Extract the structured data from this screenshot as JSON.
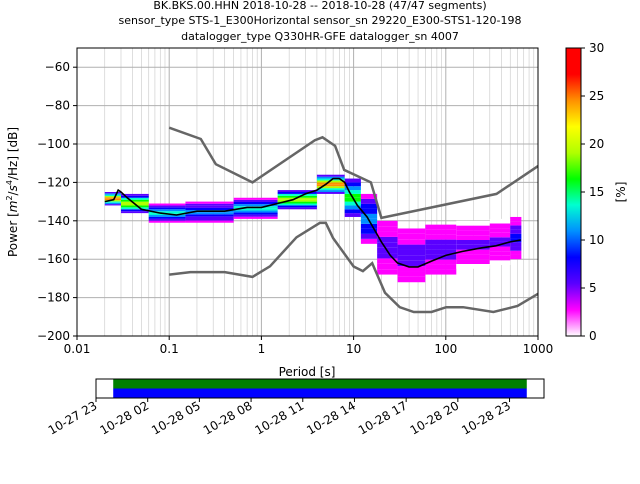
{
  "title_lines": [
    "BK.BKS.00.HHN   2018-10-28 -- 2018-10-28  (47/47 segments)",
    "sensor_type STS-1_E300Horizontal sensor_sn 29220_E300-STS1-120-198",
    "datalogger_type Q330HR-GFE datalogger_sn 4007"
  ],
  "chart_data": {
    "type": "heatmap",
    "title": "BK.BKS.00.HHN   2018-10-28 -- 2018-10-28  (47/47 segments)",
    "subtitle": "sensor_type STS-1_E300Horizontal sensor_sn 29220_E300-STS1-120-198 / datalogger_type Q330HR-GFE datalogger_sn 4007",
    "xlabel": "Period [s]",
    "ylabel_parts": [
      "Power [",
      "m",
      "2",
      "/",
      "s",
      "4",
      "/Hz] [dB]"
    ],
    "xscale": "log",
    "xlim": [
      0.01,
      1000
    ],
    "ylim": [
      -200,
      -50
    ],
    "x_ticks": [
      {
        "value": 0.01,
        "label": "0.01"
      },
      {
        "value": 0.1,
        "label": "0.1"
      },
      {
        "value": 1,
        "label": "1"
      },
      {
        "value": 10,
        "label": "10"
      },
      {
        "value": 100,
        "label": "100"
      },
      {
        "value": 1000,
        "label": "1000"
      }
    ],
    "y_ticks": [
      {
        "value": -60,
        "label": "−60"
      },
      {
        "value": -80,
        "label": "−80"
      },
      {
        "value": -100,
        "label": "−100"
      },
      {
        "value": -120,
        "label": "−120"
      },
      {
        "value": -140,
        "label": "−140"
      },
      {
        "value": -160,
        "label": "−160"
      },
      {
        "value": -180,
        "label": "−180"
      },
      {
        "value": -200,
        "label": "−200"
      }
    ],
    "grid": true,
    "colorbar": {
      "label": "[%]",
      "range": [
        0,
        30
      ],
      "ticks": [
        {
          "value": 0,
          "label": "0"
        },
        {
          "value": 5,
          "label": "5"
        },
        {
          "value": 10,
          "label": "10"
        },
        {
          "value": 15,
          "label": "15"
        },
        {
          "value": 20,
          "label": "20"
        },
        {
          "value": 25,
          "label": "25"
        },
        {
          "value": 30,
          "label": "30"
        }
      ],
      "colors": [
        "#ffffff",
        "#ff00ff",
        "#5a00ff",
        "#0000ff",
        "#0090ff",
        "#00ffd0",
        "#00ff00",
        "#b0ff00",
        "#ffff00",
        "#ff9000",
        "#ff0000",
        "#ff0000"
      ]
    },
    "noise_models": {
      "high": [
        [
          0.1,
          -91.5
        ],
        [
          0.22,
          -97.4
        ],
        [
          0.32,
          -110.5
        ],
        [
          0.8,
          -120
        ],
        [
          3.8,
          -98
        ],
        [
          4.6,
          -96.5
        ],
        [
          6.3,
          -101
        ],
        [
          7.9,
          -113.5
        ],
        [
          15.4,
          -120
        ],
        [
          20,
          -138.5
        ],
        [
          354.8,
          -126
        ],
        [
          1000,
          -111.5
        ]
      ],
      "low": [
        [
          0.1,
          -168
        ],
        [
          0.17,
          -166.7
        ],
        [
          0.4,
          -166.7
        ],
        [
          0.8,
          -169.2
        ],
        [
          1.24,
          -163.7
        ],
        [
          2.4,
          -148.6
        ],
        [
          4.3,
          -141.1
        ],
        [
          5,
          -141.1
        ],
        [
          6,
          -149
        ],
        [
          10,
          -163.8
        ],
        [
          12.6,
          -166.2
        ],
        [
          15.9,
          -162.1
        ],
        [
          21.9,
          -177.5
        ],
        [
          31.6,
          -185
        ],
        [
          45,
          -187.5
        ],
        [
          70,
          -187.5
        ],
        [
          101,
          -185
        ],
        [
          154,
          -185
        ],
        [
          328,
          -187.5
        ],
        [
          600,
          -184.4
        ],
        [
          1000,
          -178
        ]
      ]
    },
    "series": [
      {
        "name": "mode",
        "color": "#000000",
        "points": [
          [
            0.02,
            -130
          ],
          [
            0.025,
            -129
          ],
          [
            0.028,
            -124
          ],
          [
            0.03,
            -125
          ],
          [
            0.035,
            -128
          ],
          [
            0.05,
            -134
          ],
          [
            0.08,
            -136
          ],
          [
            0.12,
            -137
          ],
          [
            0.2,
            -135
          ],
          [
            0.4,
            -135
          ],
          [
            0.7,
            -133
          ],
          [
            1,
            -133
          ],
          [
            1.5,
            -131
          ],
          [
            2.2,
            -129
          ],
          [
            3,
            -126
          ],
          [
            4,
            -124
          ],
          [
            5,
            -121
          ],
          [
            6,
            -118
          ],
          [
            7,
            -118
          ],
          [
            8,
            -120
          ],
          [
            9,
            -125
          ],
          [
            11,
            -132
          ],
          [
            14,
            -138
          ],
          [
            17,
            -145
          ],
          [
            20,
            -151
          ],
          [
            25,
            -158
          ],
          [
            30,
            -162
          ],
          [
            40,
            -164
          ],
          [
            50,
            -164
          ],
          [
            70,
            -161
          ],
          [
            100,
            -158
          ],
          [
            150,
            -156
          ],
          [
            250,
            -154
          ],
          [
            350,
            -153
          ],
          [
            500,
            -151
          ],
          [
            650,
            -150
          ]
        ]
      }
    ],
    "density_bands": [
      {
        "from": 0.02,
        "to": 0.03,
        "lo": -132,
        "hi": -125,
        "center_pct": 26
      },
      {
        "from": 0.03,
        "to": 0.06,
        "lo": -136,
        "hi": -126,
        "center_pct": 22
      },
      {
        "from": 0.06,
        "to": 0.15,
        "lo": -141,
        "hi": -131,
        "center_pct": 14
      },
      {
        "from": 0.15,
        "to": 0.5,
        "lo": -141,
        "hi": -130,
        "center_pct": 11
      },
      {
        "from": 0.5,
        "to": 1.5,
        "lo": -139,
        "hi": -128,
        "center_pct": 14
      },
      {
        "from": 1.5,
        "to": 4,
        "lo": -134,
        "hi": -124,
        "center_pct": 22
      },
      {
        "from": 4,
        "to": 8,
        "lo": -126,
        "hi": -116,
        "center_pct": 26
      },
      {
        "from": 8,
        "to": 12,
        "lo": -138,
        "hi": -118,
        "center_pct": 18
      },
      {
        "from": 12,
        "to": 18,
        "lo": -152,
        "hi": -126,
        "center_pct": 12
      },
      {
        "from": 18,
        "to": 30,
        "lo": -168,
        "hi": -140,
        "center_pct": 7
      },
      {
        "from": 30,
        "to": 60,
        "lo": -172,
        "hi": -144,
        "center_pct": 6
      },
      {
        "from": 60,
        "to": 130,
        "lo": -168,
        "hi": -142,
        "center_pct": 6
      },
      {
        "from": 130,
        "to": 300,
        "lo": -165,
        "hi": -140,
        "center_pct": 5
      },
      {
        "from": 300,
        "to": 500,
        "lo": -163,
        "hi": -139,
        "center_pct": 5
      },
      {
        "from": 500,
        "to": 660,
        "lo": -160,
        "hi": -138,
        "center_pct": 8
      }
    ],
    "coverage_timeline": {
      "x_ticks": [
        "10-27 23",
        "10-28 02",
        "10-28 05",
        "10-28 08",
        "10-28 11",
        "10-28 14",
        "10-28 17",
        "10-28 20",
        "10-28 23"
      ],
      "start_hour": 0,
      "end_hour": 24,
      "axis_range_hours": [
        -1,
        25
      ],
      "colors": {
        "upper": "#008000",
        "lower": "#0000ff"
      }
    }
  }
}
